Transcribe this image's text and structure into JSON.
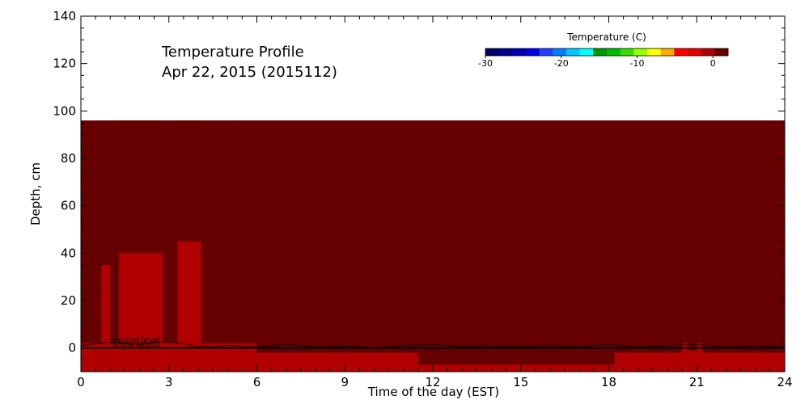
{
  "chart_data": {
    "type": "heatmap",
    "title": "Temperature Profile",
    "subtitle": "Apr 22, 2015 (2015112)",
    "xlabel": "Time of the day (EST)",
    "ylabel": "Depth, cm",
    "xlim": [
      0,
      24
    ],
    "ylim": [
      -10,
      140
    ],
    "xticks": [
      0,
      3,
      6,
      9,
      12,
      15,
      18,
      21,
      24
    ],
    "yticks": [
      0,
      20,
      40,
      60,
      80,
      100,
      120,
      140
    ],
    "x_tick_labels": [
      "0",
      "3",
      "6",
      "9",
      "12",
      "15",
      "18",
      "21",
      "24"
    ],
    "y_tick_labels": [
      "0",
      "20",
      "40",
      "60",
      "80",
      "100",
      "120",
      "140"
    ],
    "data_extent": {
      "x": [
        0,
        24
      ],
      "depth": [
        -10,
        96
      ]
    },
    "background_value_c": 2,
    "regions": [
      {
        "x": [
          0,
          6
        ],
        "depth": [
          -10,
          2
        ],
        "value_c": 0
      },
      {
        "x": [
          6,
          11.5
        ],
        "depth": [
          -10,
          -2
        ],
        "value_c": 0
      },
      {
        "x": [
          11.5,
          18.2
        ],
        "depth": [
          -10,
          -7
        ],
        "value_c": 0
      },
      {
        "x": [
          18.2,
          24
        ],
        "depth": [
          -10,
          -2
        ],
        "value_c": 0
      },
      {
        "x": [
          11.5,
          12
        ],
        "depth": [
          -7,
          -2
        ],
        "value_c": 0.5
      },
      {
        "x": [
          12,
          12.4
        ],
        "depth": [
          -7,
          -2
        ],
        "value_c": 1
      },
      {
        "x": [
          18.2,
          20.5
        ],
        "depth": [
          -2,
          2
        ],
        "value_c": 0.5
      },
      {
        "x": [
          20.5,
          21.2
        ],
        "depth": [
          -2,
          2
        ],
        "value_c": 0
      },
      {
        "x": [
          20.7,
          21.0
        ],
        "depth": [
          -1,
          2
        ],
        "value_c": 1.5
      },
      {
        "x": [
          0.6,
          1.1
        ],
        "depth": [
          2,
          60
        ],
        "value_c": 0.5
      },
      {
        "x": [
          0.7,
          1.0
        ],
        "depth": [
          2,
          35
        ],
        "value_c": 0
      },
      {
        "x": [
          1.1,
          2.9
        ],
        "depth": [
          2,
          96
        ],
        "value_c": 0.5
      },
      {
        "x": [
          1.3,
          2.8
        ],
        "depth": [
          2,
          40
        ],
        "value_c": 0
      },
      {
        "x": [
          2.8,
          3.2
        ],
        "depth": [
          2,
          70
        ],
        "value_c": 0.5
      },
      {
        "x": [
          3.2,
          4.3
        ],
        "depth": [
          2,
          96
        ],
        "value_c": 0.5
      },
      {
        "x": [
          3.3,
          4.1
        ],
        "depth": [
          2,
          45
        ],
        "value_c": 0
      },
      {
        "x": [
          4.3,
          5.2
        ],
        "depth": [
          2,
          80
        ],
        "value_c": 1
      },
      {
        "x": [
          4.6,
          5.0
        ],
        "depth": [
          2,
          30
        ],
        "value_c": 0.5
      },
      {
        "x": [
          5.2,
          5.5
        ],
        "depth": [
          2,
          96
        ],
        "value_c": 1.5
      },
      {
        "x": [
          5.5,
          5.7
        ],
        "depth": [
          2,
          25
        ],
        "value_c": 0.5
      },
      {
        "x": [
          2.2,
          2.4
        ],
        "depth": [
          8,
          14
        ],
        "value_c": -1.5
      }
    ],
    "lines": [
      {
        "name": "ground level",
        "values": [
          0,
          0
        ]
      },
      {
        "name": "snow depth",
        "values": [
          1,
          2.5,
          1.5,
          3,
          0.5,
          1,
          0.5,
          1.5,
          0.5,
          1,
          0,
          1,
          1.5,
          0.5,
          1,
          0.5,
          1,
          0.5,
          1.5,
          0.5,
          1,
          1.5,
          0.5,
          1,
          0.5
        ]
      }
    ],
    "annotations": [
      "ground level",
      "snow depth"
    ],
    "colorbar": {
      "title": "Temperature (C)",
      "range": [
        -30,
        2
      ],
      "ticks": [
        -30,
        -20,
        -10,
        0
      ],
      "tick_labels": [
        "-30",
        "-20",
        "-10",
        "0"
      ],
      "colors": [
        "#000066",
        "#00008b",
        "#0000b4",
        "#0000e0",
        "#1f3fff",
        "#0080ff",
        "#00c8ff",
        "#00ffff",
        "#009900",
        "#00bb00",
        "#33dd00",
        "#99ff00",
        "#ffff00",
        "#ffaa00",
        "#ff0000",
        "#e00000",
        "#b00000",
        "#660000"
      ]
    },
    "grid": false
  }
}
